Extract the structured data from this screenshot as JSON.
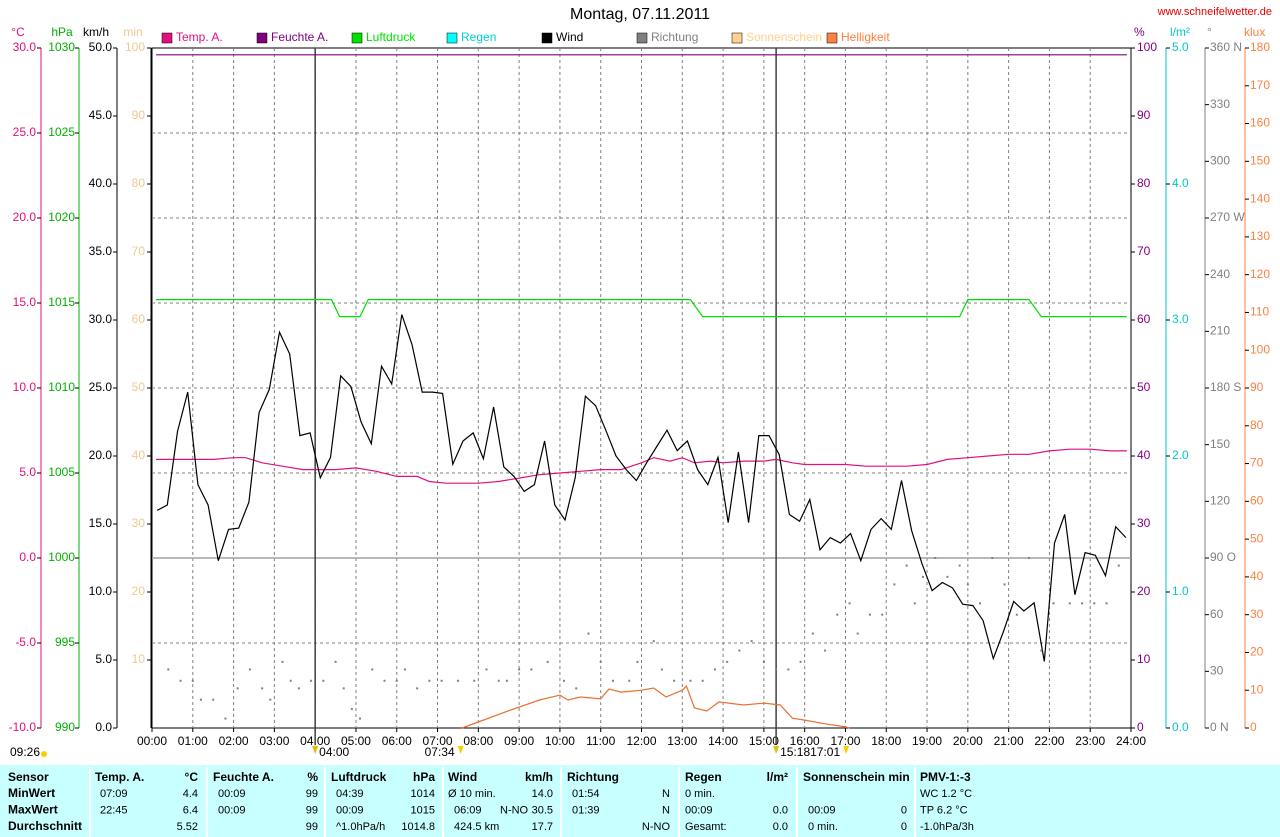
{
  "chart_data": {
    "type": "line",
    "title": "Montag, 07.11.2011",
    "source": "www.schneifelwetter.de",
    "updated": "09:26",
    "xlim": [
      0,
      24
    ],
    "xticks": [
      {
        "value": 0,
        "label": "00:00"
      },
      {
        "value": 1,
        "label": "01:00"
      },
      {
        "value": 2,
        "label": "02:00"
      },
      {
        "value": 3,
        "label": "03:00"
      },
      {
        "value": 4,
        "label": "04:00"
      },
      {
        "value": 5,
        "label": "05:00"
      },
      {
        "value": 6,
        "label": "06:00"
      },
      {
        "value": 7,
        "label": "07:00"
      },
      {
        "value": 8,
        "label": "08:00"
      },
      {
        "value": 9,
        "label": "09:00"
      },
      {
        "value": 10,
        "label": "10:00"
      },
      {
        "value": 11,
        "label": "11:00"
      },
      {
        "value": 12,
        "label": "12:00"
      },
      {
        "value": 13,
        "label": "13:00"
      },
      {
        "value": 14,
        "label": "14:00"
      },
      {
        "value": 15,
        "label": "15:00"
      },
      {
        "value": 16,
        "label": "16:00"
      },
      {
        "value": 17,
        "label": "17:00"
      },
      {
        "value": 18,
        "label": "18:00"
      },
      {
        "value": 19,
        "label": "19:00"
      },
      {
        "value": 20,
        "label": "20:00"
      },
      {
        "value": 21,
        "label": "21:00"
      },
      {
        "value": 22,
        "label": "22:00"
      },
      {
        "value": 23,
        "label": "23:00"
      },
      {
        "value": 24,
        "label": "24:00"
      }
    ],
    "grid": true,
    "axes": [
      {
        "unit": "°C",
        "side": "left",
        "color": "#e0107f",
        "lim": [
          -10,
          30
        ],
        "ticks": [
          {
            "value": 30,
            "label": "30.0"
          },
          {
            "value": 25,
            "label": "25.0"
          },
          {
            "value": 20,
            "label": "20.0"
          },
          {
            "value": 15,
            "label": "15.0"
          },
          {
            "value": 10,
            "label": "10.0"
          },
          {
            "value": 5,
            "label": "5.0"
          },
          {
            "value": 0,
            "label": "0.0"
          },
          {
            "value": -5,
            "label": "-5.0"
          },
          {
            "value": -10,
            "label": "-10.0"
          }
        ]
      },
      {
        "unit": "hPa",
        "side": "left",
        "color": "#00b000",
        "lim": [
          990,
          1030
        ],
        "ticks": [
          1030,
          1025,
          1020,
          1015,
          1010,
          1005,
          1000,
          995,
          990
        ]
      },
      {
        "unit": "km/h",
        "side": "left",
        "color": "#000000",
        "lim": [
          0,
          50
        ],
        "ticks": [
          {
            "value": 50,
            "label": "50.0"
          },
          {
            "value": 45,
            "label": "45.0"
          },
          {
            "value": 40,
            "label": "40.0"
          },
          {
            "value": 35,
            "label": "35.0"
          },
          {
            "value": 30,
            "label": "30.0"
          },
          {
            "value": 25,
            "label": "25.0"
          },
          {
            "value": 20,
            "label": "20.0"
          },
          {
            "value": 15,
            "label": "15.0"
          },
          {
            "value": 10,
            "label": "10.0"
          },
          {
            "value": 5,
            "label": "5.0"
          },
          {
            "value": 0,
            "label": "0.0"
          }
        ]
      },
      {
        "unit": "min",
        "side": "left",
        "color": "#f0c890",
        "lim": [
          0,
          100
        ],
        "ticks": [
          100,
          90,
          80,
          70,
          60,
          50,
          40,
          30,
          20,
          10
        ]
      },
      {
        "unit": "%",
        "side": "right",
        "color": "#800080",
        "lim": [
          0,
          100
        ],
        "ticks": [
          100,
          90,
          80,
          70,
          60,
          50,
          40,
          30,
          20,
          10,
          0
        ]
      },
      {
        "unit": "l/m²",
        "side": "right",
        "color": "#00c8c8",
        "lim": [
          0,
          5
        ],
        "ticks": [
          {
            "value": 5,
            "label": "5.0"
          },
          {
            "value": 4,
            "label": "4.0"
          },
          {
            "value": 3,
            "label": "3.0"
          },
          {
            "value": 2,
            "label": "2.0"
          },
          {
            "value": 1,
            "label": "1.0"
          },
          {
            "value": 0,
            "label": "0.0"
          }
        ]
      },
      {
        "unit": "°",
        "side": "right",
        "color": "#808080",
        "lim": [
          0,
          360
        ],
        "ticks": [
          {
            "value": 360,
            "label": "360 N"
          },
          330,
          300,
          {
            "value": 270,
            "label": "270 W"
          },
          240,
          210,
          {
            "value": 180,
            "label": "180 S"
          },
          150,
          120,
          {
            "value": 90,
            "label": "90 O"
          },
          60,
          30,
          {
            "value": 0,
            "label": "0 N"
          }
        ]
      },
      {
        "unit": "klux",
        "side": "right",
        "color": "#ff8040",
        "lim": [
          0,
          180
        ],
        "ticks": [
          180,
          170,
          160,
          150,
          140,
          130,
          120,
          110,
          100,
          90,
          80,
          70,
          60,
          50,
          40,
          30,
          20,
          10,
          0
        ]
      }
    ],
    "series": [
      {
        "name": "Temp. A.",
        "color": "#e0107f",
        "axis": "°C",
        "x": [
          0.1,
          1,
          1.5,
          2,
          2.3,
          2.7,
          3.2,
          3.7,
          4.5,
          5,
          5.5,
          6,
          6.5,
          6.8,
          7.2,
          8,
          8.5,
          9,
          9.5,
          10,
          10.5,
          11,
          11.5,
          12,
          12.3,
          12.7,
          13,
          13.3,
          13.7,
          14,
          14.5,
          15,
          15.3,
          15.7,
          16,
          17,
          17.5,
          18,
          18.5,
          19,
          19.5,
          20,
          20.5,
          21,
          21.5,
          22,
          22.5,
          23,
          23.5,
          23.9
        ],
        "values": [
          5.8,
          5.8,
          5.8,
          5.9,
          5.9,
          5.6,
          5.4,
          5.2,
          5.2,
          5.3,
          5.1,
          4.8,
          4.8,
          4.5,
          4.4,
          4.4,
          4.5,
          4.7,
          4.9,
          5.0,
          5.1,
          5.2,
          5.2,
          5.6,
          5.9,
          5.7,
          5.9,
          5.6,
          5.7,
          5.6,
          5.7,
          5.7,
          5.8,
          5.6,
          5.5,
          5.5,
          5.4,
          5.4,
          5.4,
          5.5,
          5.8,
          5.9,
          6.0,
          6.1,
          6.1,
          6.3,
          6.4,
          6.4,
          6.3,
          6.3
        ]
      },
      {
        "name": "Feuchte A.",
        "color": "#800080",
        "axis": "%",
        "x": [
          0.1,
          23.9
        ],
        "values": [
          99,
          99
        ]
      },
      {
        "name": "Luftdruck",
        "color": "#00e000",
        "axis": "hPa",
        "x": [
          0.1,
          4.4,
          4.6,
          5.1,
          5.3,
          13.2,
          13.5,
          19.8,
          20.0,
          21.5,
          21.8,
          23.9
        ],
        "values": [
          1015.2,
          1015.2,
          1014.2,
          1014.2,
          1015.2,
          1015.2,
          1014.2,
          1014.2,
          1015.2,
          1015.2,
          1014.2,
          1014.2
        ]
      },
      {
        "name": "Regen",
        "color": "#00ffff",
        "axis": "l/m²"
      },
      {
        "name": "Wind",
        "color": "#000000",
        "axis": "km/h",
        "x": [
          0.125,
          0.375,
          0.625,
          0.875,
          1.125,
          1.375,
          1.625,
          1.875,
          2.125,
          2.375,
          2.625,
          2.875,
          3.125,
          3.375,
          3.625,
          3.875,
          4.125,
          4.375,
          4.625,
          4.875,
          5.125,
          5.375,
          5.625,
          5.875,
          6.125,
          6.375,
          6.625,
          6.875,
          7.125,
          7.375,
          7.625,
          7.875,
          8.125,
          8.375,
          8.625,
          8.875,
          9.125,
          9.375,
          9.625,
          9.875,
          10.125,
          10.375,
          10.625,
          10.875,
          11.125,
          11.375,
          11.625,
          11.875,
          12.125,
          12.375,
          12.625,
          12.875,
          13.125,
          13.375,
          13.625,
          13.875,
          14.125,
          14.375,
          14.625,
          14.875,
          15.125,
          15.375,
          15.625,
          15.875,
          16.125,
          16.375,
          16.625,
          16.875,
          17.125,
          17.375,
          17.625,
          17.875,
          18.125,
          18.375,
          18.625,
          18.875,
          19.125,
          19.375,
          19.625,
          19.875,
          20.125,
          20.375,
          20.625,
          20.875,
          21.125,
          21.375,
          21.625,
          21.875,
          22.125,
          22.375,
          22.625,
          22.875,
          23.125,
          23.375,
          23.625,
          23.875
        ],
        "values": [
          16.0,
          16.4,
          21.8,
          24.7,
          17.9,
          16.4,
          12.3,
          14.6,
          14.7,
          16.6,
          23.2,
          24.9,
          29.1,
          27.5,
          21.5,
          21.7,
          18.4,
          19.9,
          25.9,
          25.1,
          22.5,
          20.9,
          26.6,
          25.3,
          30.4,
          28.2,
          24.7,
          24.7,
          24.6,
          19.4,
          21.1,
          21.7,
          19.8,
          23.6,
          19.2,
          18.5,
          17.4,
          17.9,
          21.1,
          16.4,
          15.3,
          18.4,
          24.4,
          23.7,
          21.9,
          20.0,
          19.0,
          18.2,
          19.5,
          20.7,
          21.9,
          20.4,
          21.1,
          19.0,
          17.9,
          19.9,
          15.1,
          20.3,
          15.1,
          21.5,
          21.5,
          20.1,
          15.7,
          15.2,
          16.8,
          13.1,
          14.0,
          13.6,
          14.3,
          12.3,
          14.6,
          15.4,
          14.6,
          18.2,
          14.5,
          12.1,
          10.1,
          10.7,
          10.3,
          9.1,
          9.0,
          7.9,
          5.1,
          7.1,
          9.3,
          8.6,
          9.2,
          4.9,
          13.6,
          15.7,
          9.8,
          12.9,
          12.7,
          11.2,
          14.8,
          14.0
        ]
      },
      {
        "name": "Richtung",
        "color": "#808080",
        "axis": "°",
        "style": "dots",
        "x": [
          0.4,
          0.7,
          1.0,
          1.2,
          1.5,
          1.8,
          2.1,
          2.4,
          2.7,
          2.9,
          3.2,
          3.4,
          3.6,
          3.9,
          4.2,
          4.5,
          4.7,
          4.9,
          5.1,
          5.4,
          5.7,
          6.0,
          6.2,
          6.5,
          6.8,
          7.1,
          7.5,
          7.9,
          8.2,
          8.5,
          8.7,
          9.0,
          9.3,
          9.7,
          10.1,
          10.4,
          10.7,
          11.0,
          11.3,
          11.7,
          11.9,
          12.3,
          12.5,
          12.8,
          13.2,
          13.5,
          13.8,
          14.1,
          14.4,
          14.7,
          15.0,
          15.3,
          15.6,
          15.9,
          16.2,
          16.5,
          16.8,
          17.1,
          17.3,
          17.6,
          17.9,
          18.2,
          18.5,
          18.7,
          18.9,
          19.2,
          19.5,
          19.8,
          20.0,
          20.3,
          20.6,
          20.9,
          21.2,
          21.5,
          21.8,
          22.1,
          22.5,
          22.8,
          23.1,
          23.4,
          23.7
        ],
        "values": [
          31,
          25,
          25,
          15,
          15,
          5,
          21,
          31,
          21,
          15,
          35,
          25,
          21,
          25,
          25,
          35,
          21,
          10,
          5,
          31,
          25,
          25,
          31,
          21,
          25,
          25,
          25,
          25,
          31,
          25,
          25,
          31,
          31,
          35,
          25,
          21,
          50,
          35,
          25,
          25,
          35,
          46,
          31,
          25,
          25,
          25,
          31,
          35,
          41,
          46,
          35,
          31,
          31,
          35,
          50,
          41,
          60,
          66,
          50,
          60,
          60,
          76,
          86,
          66,
          80,
          90,
          80,
          86,
          76,
          66,
          90,
          76,
          60,
          90,
          41,
          66,
          66,
          66,
          66,
          66,
          86
        ]
      },
      {
        "name": "Sonnenschein",
        "color": "#ffd090",
        "axis": "min"
      },
      {
        "name": "Helligkeit",
        "color": "#ff8040",
        "axis": "klux",
        "x": [
          7.6,
          8,
          8.8,
          9.5,
          10,
          10.2,
          10.5,
          11,
          11.2,
          11.5,
          12,
          12.3,
          12.6,
          13,
          13.1,
          13.3,
          13.6,
          13.9,
          14.5,
          15,
          15.4,
          15.7,
          16,
          16.5,
          17,
          17.1
        ],
        "values": [
          0,
          1.6,
          4.8,
          7.4,
          8.7,
          7.4,
          8.2,
          7.7,
          10.3,
          9.5,
          10,
          10.6,
          8.2,
          10,
          11.1,
          5.3,
          4.5,
          6.9,
          6.1,
          6.6,
          6.1,
          2.6,
          2.1,
          1.1,
          0.3,
          0
        ]
      }
    ],
    "markers": [
      {
        "x": 4,
        "label": "04:00",
        "color": "#404040"
      },
      {
        "x": 7.5667,
        "label": "07:34",
        "color": "#ffcc00"
      },
      {
        "x": 15.3,
        "label": "15:18",
        "color": "#404040"
      },
      {
        "x": 17.0167,
        "label": "17:01",
        "color": "#ffcc00"
      }
    ]
  },
  "table": {
    "header": [
      "Sensor",
      "Temp. A.",
      "°C",
      "Feuchte A.",
      "%",
      "Luftdruck",
      "hPa",
      "Wind",
      "km/h",
      "Richtung",
      "Regen",
      "l/m²",
      "Sonnenschein min",
      "PMV-1:-3"
    ],
    "rows": [
      [
        "MinWert",
        "07:09",
        "4.4",
        "00:09",
        "99",
        "04:39",
        "1014",
        "Ø 10 min.",
        null,
        "14.0",
        "01:54",
        "N",
        "0 min.",
        null,
        null,
        null,
        "WC 1.2 °C"
      ],
      [
        "MaxWert",
        "22:45",
        "6.4",
        "00:09",
        "99",
        "00:09",
        "1015",
        "06:09",
        "N-NO",
        "30.5",
        "01:39",
        "N",
        "00:09",
        "0.0",
        "00:09",
        "0",
        "TP 6.2 °C"
      ],
      [
        "Durchschnitt",
        null,
        "5.52",
        null,
        "99",
        "^1.0hPa/h",
        "1014.8",
        "424.5 km",
        null,
        "17.7",
        null,
        "N-NO",
        "Gesamt:",
        "0.0",
        "0 min.",
        "0",
        "-1.0hPa/3h"
      ]
    ]
  }
}
